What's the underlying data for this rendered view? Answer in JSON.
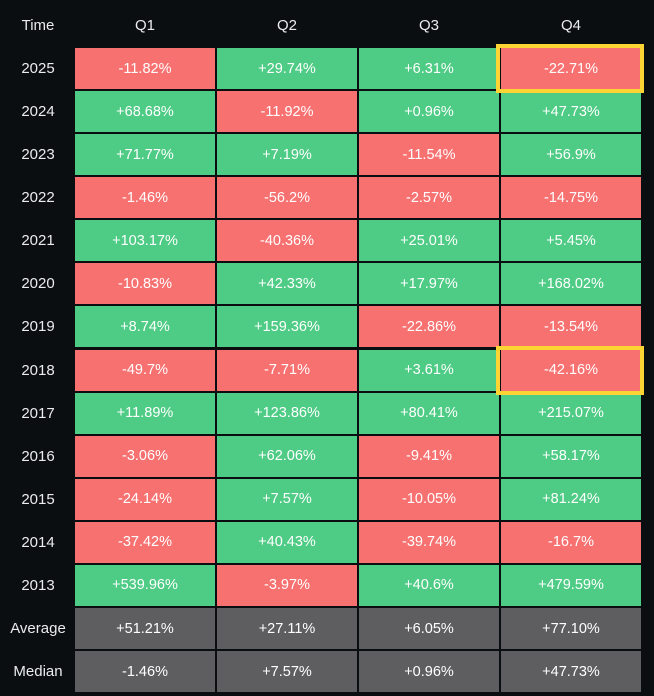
{
  "chart_data": {
    "type": "table",
    "title": "",
    "corner_label": "Time",
    "columns": [
      "Q1",
      "Q2",
      "Q3",
      "Q4"
    ],
    "rows": [
      {
        "label": "2025",
        "values": [
          "-11.82%",
          "+29.74%",
          "+6.31%",
          "-22.71%"
        ]
      },
      {
        "label": "2024",
        "values": [
          "+68.68%",
          "-11.92%",
          "+0.96%",
          "+47.73%"
        ]
      },
      {
        "label": "2023",
        "values": [
          "+71.77%",
          "+7.19%",
          "-11.54%",
          "+56.9%"
        ]
      },
      {
        "label": "2022",
        "values": [
          "-1.46%",
          "-56.2%",
          "-2.57%",
          "-14.75%"
        ]
      },
      {
        "label": "2021",
        "values": [
          "+103.17%",
          "-40.36%",
          "+25.01%",
          "+5.45%"
        ]
      },
      {
        "label": "2020",
        "values": [
          "-10.83%",
          "+42.33%",
          "+17.97%",
          "+168.02%"
        ]
      },
      {
        "label": "2019",
        "values": [
          "+8.74%",
          "+159.36%",
          "-22.86%",
          "-13.54%"
        ]
      },
      {
        "label": "2018",
        "values": [
          "-49.7%",
          "-7.71%",
          "+3.61%",
          "-42.16%"
        ]
      },
      {
        "label": "2017",
        "values": [
          "+11.89%",
          "+123.86%",
          "+80.41%",
          "+215.07%"
        ]
      },
      {
        "label": "2016",
        "values": [
          "-3.06%",
          "+62.06%",
          "-9.41%",
          "+58.17%"
        ]
      },
      {
        "label": "2015",
        "values": [
          "-24.14%",
          "+7.57%",
          "-10.05%",
          "+81.24%"
        ]
      },
      {
        "label": "2014",
        "values": [
          "-37.42%",
          "+40.43%",
          "-39.74%",
          "-16.7%"
        ]
      },
      {
        "label": "2013",
        "values": [
          "+539.96%",
          "-3.97%",
          "+40.6%",
          "+479.59%"
        ]
      }
    ],
    "summary_rows": [
      {
        "label": "Average",
        "values": [
          "+51.21%",
          "+27.11%",
          "+6.05%",
          "+77.10%"
        ]
      },
      {
        "label": "Median",
        "values": [
          "-1.46%",
          "+7.57%",
          "+0.96%",
          "+47.73%"
        ]
      }
    ],
    "highlighted_cells": [
      {
        "row": "2025",
        "column": "Q4"
      },
      {
        "row": "2018",
        "column": "Q4"
      }
    ]
  },
  "colors": {
    "positive": "#4ecb84",
    "negative": "#f77171",
    "summary": "#5e5e60",
    "highlight": "#fcd535",
    "background": "#0b0e11",
    "text": "#eaecef"
  }
}
